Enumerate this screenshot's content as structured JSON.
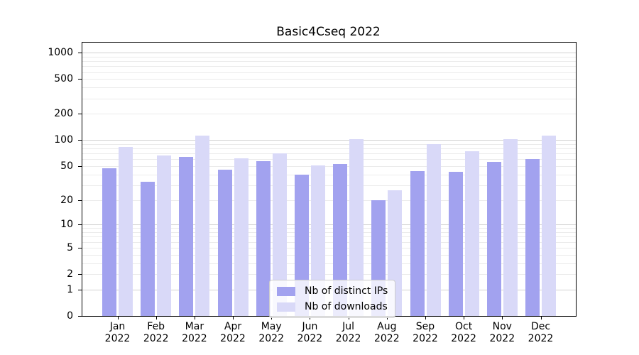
{
  "title": "Basic4Cseq 2022",
  "chart_data": {
    "type": "bar",
    "title": "Basic4Cseq 2022",
    "categories": [
      "Jan",
      "Feb",
      "Mar",
      "Apr",
      "May",
      "Jun",
      "Jul",
      "Aug",
      "Sep",
      "Oct",
      "Nov",
      "Dec"
    ],
    "category_year": "2022",
    "series": [
      {
        "name": "Nb of distinct IPs",
        "color": "#a2a2ef",
        "values": [
          47,
          33,
          64,
          45,
          57,
          40,
          53,
          20,
          44,
          43,
          56,
          60
        ]
      },
      {
        "name": "Nb of downloads",
        "color": "#d9d9f8",
        "values": [
          84,
          66,
          112,
          62,
          70,
          51,
          102,
          26,
          90,
          74,
          102,
          112
        ]
      }
    ],
    "xlabel": "",
    "ylabel": "",
    "yscale": "log1p",
    "ylim": [
      0,
      1300
    ],
    "ytick_values": [
      1000,
      500,
      200,
      100,
      50,
      20,
      10,
      5,
      2,
      1,
      0
    ],
    "ytick_labels": [
      "1000",
      "500",
      "200",
      "100",
      "50",
      "20",
      "10",
      "5",
      "2",
      "1",
      "0"
    ],
    "grid": "horizontal, log minor + major lines",
    "legend_position": "inside lower-center-left"
  },
  "colors": {
    "background": "#ffffff",
    "spine": "#000000",
    "gridline_minor": "#ebebeb",
    "gridline_major": "#d2d2d2",
    "legend_border": "#cccccc",
    "text": "#000000"
  }
}
